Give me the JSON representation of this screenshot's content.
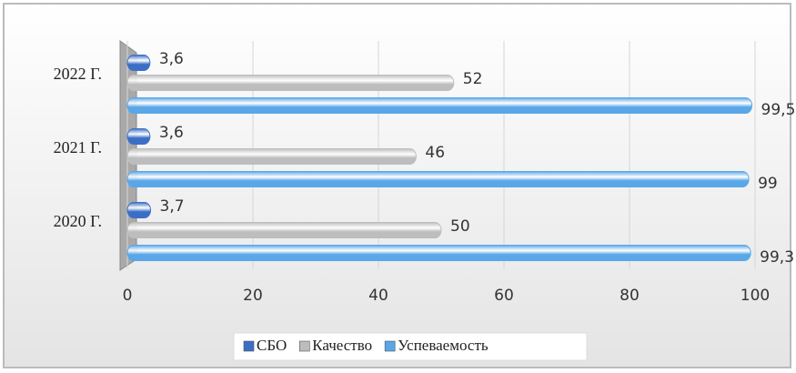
{
  "chart_data": {
    "type": "bar",
    "orientation": "horizontal",
    "categories": [
      "2020 Г.",
      "2021 Г.",
      "2022 Г."
    ],
    "series": [
      {
        "name": "СБО",
        "color": "#3b6fc6",
        "values": [
          3.7,
          3.6,
          3.6
        ],
        "value_labels": [
          "3,7",
          "3,6",
          "3,6"
        ]
      },
      {
        "name": "Качество",
        "color": "#bdbdbd",
        "values": [
          50,
          46,
          52
        ]
      },
      {
        "name": "Успеваемость",
        "color": "#59a7e8",
        "values": [
          99.3,
          99,
          99.5
        ],
        "value_labels": [
          "99,3",
          "99",
          "99,5"
        ]
      }
    ],
    "xlim": [
      0,
      100
    ],
    "xticks": [
      0,
      20,
      40,
      60,
      80,
      100
    ],
    "grid": true,
    "legend": "bottom"
  }
}
